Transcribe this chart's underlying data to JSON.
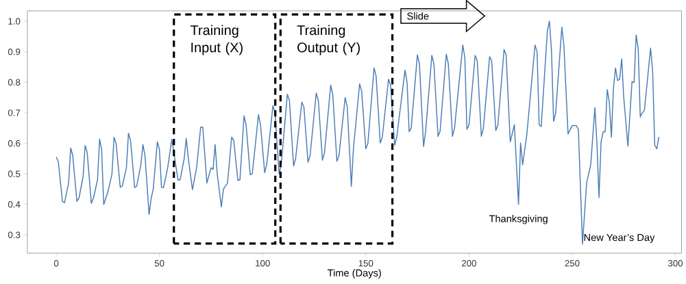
{
  "chart_data": {
    "type": "line",
    "xlabel": "Time (Days)",
    "xlim": [
      -14,
      303
    ],
    "ylim": [
      0.24,
      1.034
    ],
    "xticks": [
      0,
      50,
      100,
      150,
      200,
      250,
      300
    ],
    "yticks": [
      0.3,
      0.4,
      0.5,
      0.6,
      0.7,
      0.8,
      0.9,
      {
        "value": 1.0,
        "label": "1.0"
      }
    ],
    "grid": false,
    "marker": "none",
    "line_style": "solid",
    "series": [
      {
        "color": "#4a7db5",
        "x": [
          0,
          1,
          3,
          4,
          6,
          7,
          8,
          10,
          11,
          13,
          14,
          15,
          17,
          18,
          20,
          21,
          22,
          23,
          25,
          27,
          28,
          29,
          31,
          32,
          34,
          35,
          36,
          38,
          39,
          41,
          42,
          43,
          45,
          46,
          47,
          49,
          50,
          51,
          52,
          54,
          56,
          57,
          59,
          60,
          62,
          63,
          64,
          66,
          68,
          70,
          71,
          73,
          75,
          76,
          77,
          78,
          80,
          81,
          83,
          85,
          86,
          88,
          89,
          91,
          92,
          94,
          95,
          98,
          99,
          101,
          102,
          105,
          106,
          108,
          109,
          112,
          113,
          115,
          116,
          119,
          120,
          122,
          123,
          126,
          127,
          129,
          130,
          133,
          134,
          136,
          137,
          140,
          141,
          143,
          144,
          147,
          148,
          150,
          151,
          154,
          155,
          157,
          158,
          161,
          162,
          164,
          165,
          169,
          170,
          171,
          172,
          175,
          176,
          178,
          179,
          182,
          183,
          185,
          186,
          189,
          190,
          192,
          193,
          197,
          198,
          199,
          200,
          203,
          204,
          206,
          207,
          210,
          211,
          213,
          214,
          217,
          218,
          220,
          222,
          224,
          225,
          226,
          228,
          232,
          233,
          234,
          235,
          238,
          239,
          240,
          241,
          242,
          245,
          246,
          248,
          250,
          252,
          253,
          255,
          257,
          259,
          261,
          262,
          263,
          264,
          265,
          266,
          267,
          268,
          269,
          270,
          271,
          272,
          273,
          274,
          275,
          277,
          279,
          280,
          281,
          282,
          283,
          284,
          285,
          286,
          288,
          289,
          290,
          291,
          292
        ],
        "values": [
          0.555,
          0.54,
          0.41,
          0.405,
          0.47,
          0.585,
          0.56,
          0.41,
          0.42,
          0.49,
          0.593,
          0.57,
          0.403,
          0.42,
          0.48,
          0.614,
          0.58,
          0.4,
          0.44,
          0.5,
          0.62,
          0.6,
          0.456,
          0.46,
          0.52,
          0.633,
          0.61,
          0.455,
          0.46,
          0.53,
          0.596,
          0.56,
          0.367,
          0.42,
          0.45,
          0.605,
          0.58,
          0.456,
          0.455,
          0.52,
          0.613,
          0.57,
          0.48,
          0.48,
          0.55,
          0.616,
          0.55,
          0.448,
          0.52,
          0.653,
          0.653,
          0.47,
          0.52,
          0.515,
          0.596,
          0.5,
          0.392,
          0.45,
          0.47,
          0.62,
          0.61,
          0.479,
          0.48,
          0.69,
          0.66,
          0.497,
          0.5,
          0.694,
          0.66,
          0.504,
          0.53,
          0.724,
          0.7,
          0.5,
          0.53,
          0.761,
          0.74,
          0.526,
          0.55,
          0.735,
          0.72,
          0.538,
          0.56,
          0.765,
          0.74,
          0.545,
          0.57,
          0.791,
          0.76,
          0.541,
          0.56,
          0.75,
          0.72,
          0.459,
          0.582,
          0.795,
          0.77,
          0.582,
          0.6,
          0.847,
          0.82,
          0.601,
          0.62,
          0.81,
          0.79,
          0.594,
          0.62,
          0.84,
          0.8,
          0.638,
          0.65,
          0.89,
          0.86,
          0.59,
          0.64,
          0.888,
          0.86,
          0.623,
          0.64,
          0.892,
          0.86,
          0.623,
          0.65,
          0.922,
          0.88,
          0.646,
          0.66,
          0.888,
          0.87,
          0.623,
          0.65,
          0.884,
          0.87,
          0.642,
          0.66,
          0.907,
          0.89,
          0.605,
          0.661,
          0.4,
          0.601,
          0.53,
          0.627,
          0.922,
          0.9,
          0.661,
          0.655,
          0.97,
          1.0,
          0.9,
          0.672,
          0.7,
          0.981,
          0.92,
          0.631,
          0.658,
          0.658,
          0.646,
          0.27,
          0.47,
          0.53,
          0.717,
          0.6,
          0.422,
          0.605,
          0.638,
          0.638,
          0.776,
          0.735,
          0.62,
          0.78,
          0.847,
          0.806,
          0.81,
          0.877,
          0.75,
          0.591,
          0.802,
          0.8,
          0.955,
          0.91,
          0.687,
          0.7,
          0.709,
          0.776,
          0.912,
          0.836,
          0.594,
          0.582,
          0.621
        ]
      }
    ],
    "annotations": [
      "Training Input (X)",
      "Training Output (Y)",
      "Slide",
      {
        "text": "Thanksgiving",
        "x": 224,
        "y": 0.4
      },
      {
        "text": "New Year’s Day",
        "x": 255,
        "y": 0.27
      }
    ]
  }
}
